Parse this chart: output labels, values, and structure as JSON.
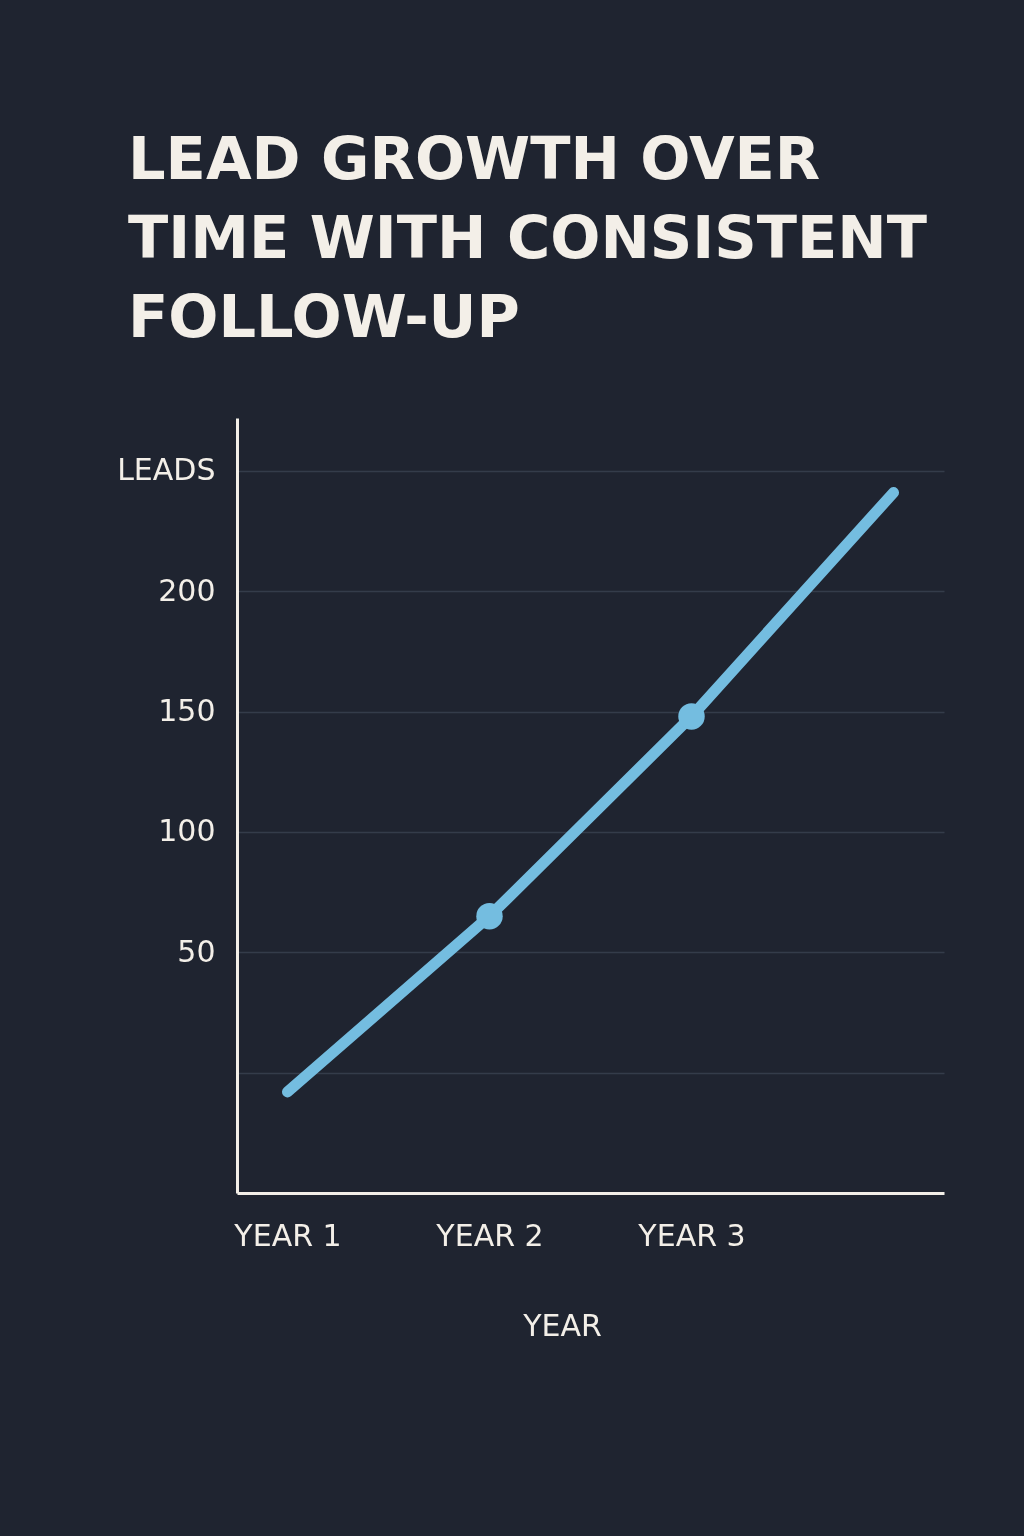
{
  "chart_data": {
    "type": "line",
    "title": "LEAD GROWTH OVER TIME WITH CONSISTENT FOLLOW-UP",
    "xlabel": "YEAR",
    "ylabel": "LEADS",
    "categories": [
      "YEAR 1",
      "YEAR 2",
      "YEAR 3",
      null
    ],
    "series": [
      {
        "color": "#74bde0",
        "values": [
          -8,
          65,
          148,
          241
        ],
        "marker": "none"
      },
      {
        "type": "scatter",
        "color": "#74bde0",
        "x": [
          "YEAR 2",
          "YEAR 3"
        ],
        "values": [
          65,
          148
        ],
        "marker": "circle"
      }
    ],
    "ylim": [
      -50,
      272
    ],
    "yticks": [
      {
        "value": 0,
        "label": null
      },
      50,
      100,
      150,
      200,
      {
        "value": 250,
        "label": null
      }
    ],
    "grid": "y",
    "line_style": "solid"
  }
}
